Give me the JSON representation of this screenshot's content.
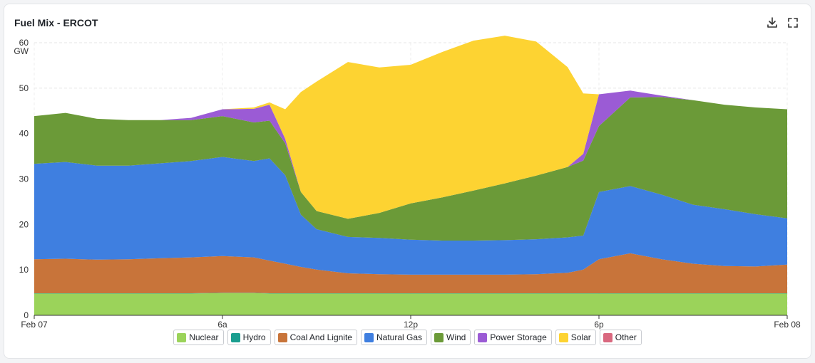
{
  "header": {
    "title": "Fuel Mix - ERCOT"
  },
  "toolbar": {
    "download_icon": "download-icon",
    "fullscreen_icon": "fullscreen-icon"
  },
  "chart_data": {
    "type": "area",
    "stacked": true,
    "title": "Fuel Mix - ERCOT",
    "ylabel": "GW",
    "ylim": [
      0,
      60
    ],
    "yticks": [
      0,
      10,
      20,
      30,
      40,
      50,
      60
    ],
    "xlim": [
      0,
      24
    ],
    "x_ticks": [
      {
        "value": 0,
        "label": "Feb 07"
      },
      {
        "value": 6,
        "label": "6a"
      },
      {
        "value": 12,
        "label": "12p"
      },
      {
        "value": 18,
        "label": "6p"
      },
      {
        "value": 24,
        "label": "Feb 08"
      }
    ],
    "x": [
      0,
      1,
      2,
      3,
      4,
      5,
      6,
      7,
      7.5,
      8,
      8.5,
      9,
      10,
      11,
      12,
      13,
      14,
      15,
      16,
      17,
      17.5,
      18,
      19,
      20,
      21,
      22,
      23,
      24
    ],
    "series": [
      {
        "name": "Nuclear",
        "color": "#9bd35a",
        "values": [
          4.8,
          4.8,
          4.8,
          4.8,
          4.8,
          4.8,
          4.9,
          4.9,
          4.8,
          4.8,
          4.8,
          4.8,
          4.8,
          4.8,
          4.8,
          4.8,
          4.8,
          4.8,
          4.8,
          4.8,
          4.8,
          4.8,
          4.8,
          4.8,
          4.8,
          4.8,
          4.8,
          4.8
        ]
      },
      {
        "name": "Hydro",
        "color": "#1a9e8f",
        "values": [
          0.05,
          0.05,
          0.05,
          0.05,
          0.05,
          0.05,
          0.05,
          0.05,
          0.05,
          0.05,
          0.05,
          0.05,
          0.05,
          0.05,
          0.05,
          0.05,
          0.05,
          0.05,
          0.05,
          0.05,
          0.05,
          0.05,
          0.05,
          0.05,
          0.05,
          0.05,
          0.05,
          0.05
        ]
      },
      {
        "name": "Coal And Lignite",
        "color": "#c8743a",
        "values": [
          7.5,
          7.6,
          7.4,
          7.5,
          7.7,
          7.9,
          8.1,
          7.8,
          7.2,
          6.5,
          5.8,
          5.2,
          4.4,
          4.2,
          4.1,
          4.1,
          4.1,
          4.1,
          4.2,
          4.5,
          5.2,
          7.5,
          8.8,
          7.5,
          6.5,
          6.0,
          5.9,
          6.3
        ]
      },
      {
        "name": "Natural Gas",
        "color": "#3f7fe0",
        "values": [
          21.0,
          21.3,
          20.7,
          20.6,
          20.9,
          21.2,
          21.8,
          21.2,
          22.5,
          19.5,
          11.5,
          8.9,
          8.0,
          8.0,
          7.7,
          7.5,
          7.5,
          7.6,
          7.7,
          7.8,
          7.5,
          14.8,
          14.8,
          14.2,
          13.0,
          12.5,
          11.5,
          10.2
        ]
      },
      {
        "name": "Wind",
        "color": "#6b9a38",
        "values": [
          10.5,
          10.8,
          10.3,
          10.0,
          9.5,
          9.0,
          9.0,
          8.5,
          8.3,
          7.0,
          5.0,
          4.0,
          4.0,
          5.5,
          8.0,
          9.5,
          11.0,
          12.5,
          14.0,
          15.5,
          16.5,
          14.5,
          19.5,
          21.5,
          23.0,
          23.0,
          23.5,
          24.0
        ]
      },
      {
        "name": "Power Storage",
        "color": "#9b5bd5",
        "values": [
          0,
          0,
          0,
          0,
          0,
          0.5,
          1.5,
          3.0,
          3.5,
          1.0,
          0,
          0,
          0,
          0,
          0,
          0,
          0,
          0,
          0,
          0,
          1.5,
          7.0,
          1.5,
          0.3,
          0,
          0,
          0,
          0
        ]
      },
      {
        "name": "Solar",
        "color": "#fdd332",
        "values": [
          0,
          0,
          0,
          0,
          0,
          0,
          0,
          0.3,
          0.5,
          6.5,
          22.0,
          28.5,
          34.5,
          32.0,
          30.5,
          32.0,
          33.0,
          32.5,
          29.5,
          22.0,
          13.3,
          0,
          0,
          0,
          0,
          0,
          0,
          0
        ]
      },
      {
        "name": "Other",
        "color": "#d9687f",
        "values": [
          0,
          0,
          0,
          0,
          0,
          0,
          0,
          0,
          0,
          0,
          0,
          0,
          0,
          0,
          0,
          0,
          0,
          0,
          0,
          0,
          0,
          0,
          0,
          0,
          0,
          0,
          0,
          0
        ]
      }
    ]
  }
}
